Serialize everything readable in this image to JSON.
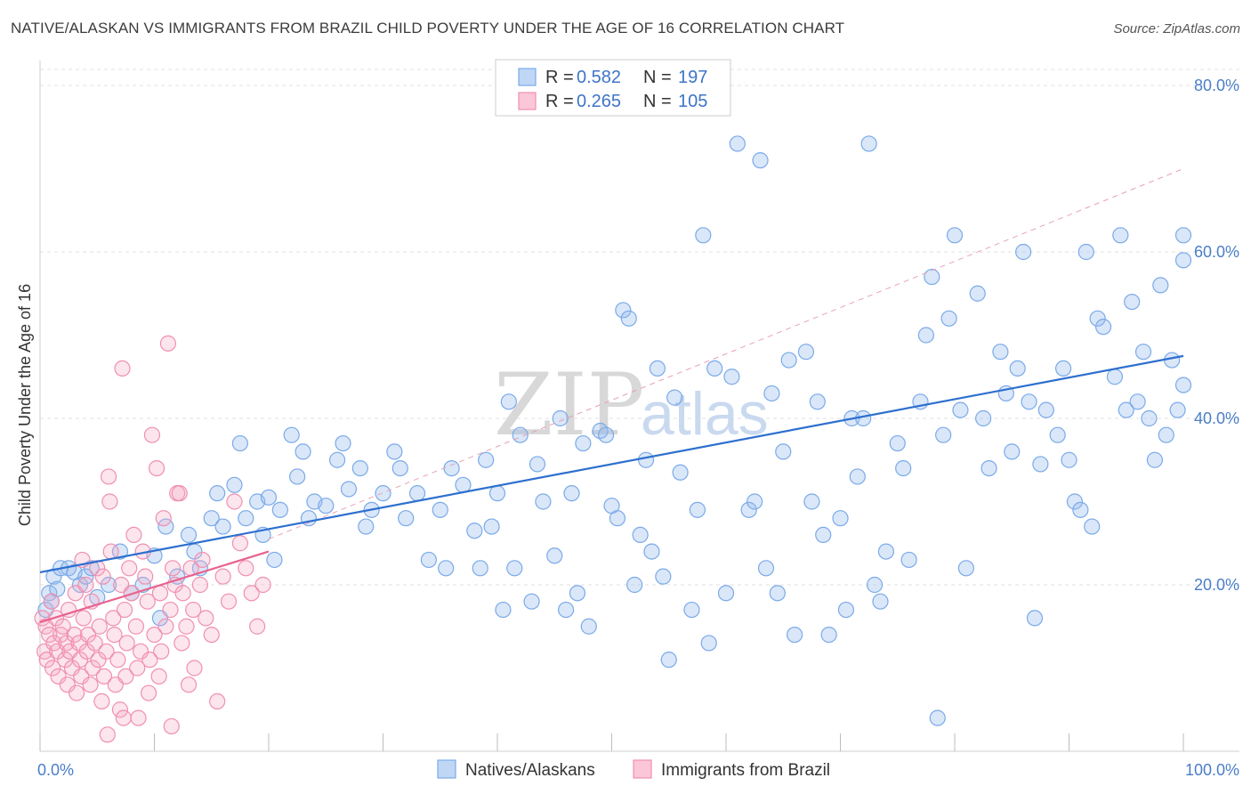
{
  "title": "NATIVE/ALASKAN VS IMMIGRANTS FROM BRAZIL CHILD POVERTY UNDER THE AGE OF 16 CORRELATION CHART",
  "source": "Source: ZipAtlas.com",
  "colors": {
    "blue": "#7aaae8",
    "blue_line": "#2d6fcf",
    "pink": "#f08fb0",
    "pink_line": "#e8628e",
    "axis_text": "#4a7ec8"
  },
  "legend": {
    "series": [
      {
        "r_label": "R =",
        "r_value": "0.582",
        "n_label": "N =",
        "n_value": "197"
      },
      {
        "r_label": "R =",
        "r_value": "0.265",
        "n_label": "N =",
        "n_value": "105"
      }
    ]
  },
  "watermark": {
    "zip": "ZIP",
    "atlas": "atlas"
  },
  "chart_data": {
    "type": "scatter",
    "title": "NATIVE/ALASKAN VS IMMIGRANTS FROM BRAZIL CHILD POVERTY UNDER THE AGE OF 16 CORRELATION CHART",
    "xlabel": "",
    "ylabel": "Child Poverty Under the Age of 16",
    "xlim": [
      0,
      100
    ],
    "ylim": [
      0,
      80
    ],
    "x_tick_labels": [
      "0.0%",
      "100.0%"
    ],
    "y_tick_labels": [
      "20.0%",
      "40.0%",
      "60.0%",
      "80.0%"
    ],
    "y_ticks": [
      20,
      40,
      60,
      80
    ],
    "series": [
      {
        "name": "Natives/Alaskans",
        "trend": {
          "x": [
            0,
            100
          ],
          "y": [
            21.5,
            47.5
          ]
        },
        "trend_ext": {
          "x": [
            20,
            100
          ],
          "y": [
            25.5,
            70
          ]
        },
        "points": [
          [
            0.5,
            17
          ],
          [
            0.8,
            19
          ],
          [
            1,
            18
          ],
          [
            1.2,
            21
          ],
          [
            1.5,
            19.5
          ],
          [
            1.8,
            22
          ],
          [
            2.5,
            22
          ],
          [
            3,
            21.5
          ],
          [
            3.5,
            20
          ],
          [
            4,
            21
          ],
          [
            4.5,
            22
          ],
          [
            5,
            18.5
          ],
          [
            6,
            20
          ],
          [
            7,
            24
          ],
          [
            8,
            19
          ],
          [
            9,
            20
          ],
          [
            10,
            23.5
          ],
          [
            10.5,
            16
          ],
          [
            11,
            27
          ],
          [
            12,
            21
          ],
          [
            13,
            26
          ],
          [
            13.5,
            24
          ],
          [
            14,
            22
          ],
          [
            15,
            28
          ],
          [
            15.5,
            31
          ],
          [
            16,
            27
          ],
          [
            17,
            32
          ],
          [
            17.5,
            37
          ],
          [
            18,
            28
          ],
          [
            19,
            30
          ],
          [
            19.5,
            26
          ],
          [
            20,
            30.5
          ],
          [
            20.5,
            23
          ],
          [
            21,
            29
          ],
          [
            22,
            38
          ],
          [
            22.5,
            33
          ],
          [
            23,
            36
          ],
          [
            23.5,
            28
          ],
          [
            24,
            30
          ],
          [
            25,
            29.5
          ],
          [
            26,
            35
          ],
          [
            26.5,
            37
          ],
          [
            27,
            31.5
          ],
          [
            28,
            34
          ],
          [
            28.5,
            27
          ],
          [
            29,
            29
          ],
          [
            30,
            31
          ],
          [
            31,
            36
          ],
          [
            31.5,
            34
          ],
          [
            32,
            28
          ],
          [
            33,
            31
          ],
          [
            34,
            23
          ],
          [
            35,
            29
          ],
          [
            35.5,
            22
          ],
          [
            36,
            34
          ],
          [
            37,
            32
          ],
          [
            38,
            26.5
          ],
          [
            38.5,
            22
          ],
          [
            39,
            35
          ],
          [
            39.5,
            27
          ],
          [
            40,
            31
          ],
          [
            40.5,
            17
          ],
          [
            41,
            42
          ],
          [
            41.5,
            22
          ],
          [
            42,
            38
          ],
          [
            43,
            18
          ],
          [
            43.5,
            34.5
          ],
          [
            44,
            30
          ],
          [
            45,
            23.5
          ],
          [
            45.5,
            40
          ],
          [
            46,
            17
          ],
          [
            46.5,
            31
          ],
          [
            47,
            19
          ],
          [
            47.5,
            37
          ],
          [
            48,
            15
          ],
          [
            49,
            38.5
          ],
          [
            49.5,
            38
          ],
          [
            50,
            29.5
          ],
          [
            50.5,
            28
          ],
          [
            51,
            53
          ],
          [
            51.5,
            52
          ],
          [
            52,
            20
          ],
          [
            52.5,
            26
          ],
          [
            53,
            35
          ],
          [
            53.5,
            24
          ],
          [
            54,
            46
          ],
          [
            54.5,
            21
          ],
          [
            55,
            11
          ],
          [
            55.5,
            42.5
          ],
          [
            56,
            33.5
          ],
          [
            57,
            17
          ],
          [
            57.5,
            29
          ],
          [
            58,
            62
          ],
          [
            58.5,
            13
          ],
          [
            59,
            46
          ],
          [
            60,
            19
          ],
          [
            60.5,
            45
          ],
          [
            61,
            73
          ],
          [
            62,
            29
          ],
          [
            62.5,
            30
          ],
          [
            63,
            71
          ],
          [
            63.5,
            22
          ],
          [
            64,
            43
          ],
          [
            64.5,
            19
          ],
          [
            65,
            36
          ],
          [
            65.5,
            47
          ],
          [
            66,
            14
          ],
          [
            67,
            48
          ],
          [
            67.5,
            30
          ],
          [
            68,
            42
          ],
          [
            68.5,
            26
          ],
          [
            69,
            14
          ],
          [
            70,
            28
          ],
          [
            70.5,
            17
          ],
          [
            71,
            40
          ],
          [
            71.5,
            33
          ],
          [
            72,
            40
          ],
          [
            72.5,
            73
          ],
          [
            73,
            20
          ],
          [
            73.5,
            18
          ],
          [
            74,
            24
          ],
          [
            75,
            37
          ],
          [
            75.5,
            34
          ],
          [
            76,
            23
          ],
          [
            77,
            42
          ],
          [
            77.5,
            50
          ],
          [
            78,
            57
          ],
          [
            78.5,
            4
          ],
          [
            79,
            38
          ],
          [
            79.5,
            52
          ],
          [
            80,
            62
          ],
          [
            80.5,
            41
          ],
          [
            81,
            22
          ],
          [
            82,
            55
          ],
          [
            82.5,
            40
          ],
          [
            83,
            34
          ],
          [
            84,
            48
          ],
          [
            84.5,
            43
          ],
          [
            85,
            36
          ],
          [
            85.5,
            46
          ],
          [
            86,
            60
          ],
          [
            86.5,
            42
          ],
          [
            87,
            16
          ],
          [
            87.5,
            34.5
          ],
          [
            88,
            41
          ],
          [
            89,
            38
          ],
          [
            89.5,
            46
          ],
          [
            90,
            35
          ],
          [
            90.5,
            30
          ],
          [
            91,
            29
          ],
          [
            91.5,
            60
          ],
          [
            92,
            27
          ],
          [
            92.5,
            52
          ],
          [
            93,
            51
          ],
          [
            94,
            45
          ],
          [
            94.5,
            62
          ],
          [
            95,
            41
          ],
          [
            95.5,
            54
          ],
          [
            96,
            42
          ],
          [
            96.5,
            48
          ],
          [
            97,
            40
          ],
          [
            97.5,
            35
          ],
          [
            98,
            56
          ],
          [
            98.5,
            38
          ],
          [
            99,
            47
          ],
          [
            99.5,
            41
          ],
          [
            100,
            62
          ],
          [
            100.5,
            59
          ],
          [
            101,
            44
          ]
        ]
      },
      {
        "name": "Immigrants from Brazil",
        "trend": {
          "x": [
            0,
            20
          ],
          "y": [
            15.5,
            24
          ]
        },
        "points": [
          [
            0.2,
            16
          ],
          [
            0.4,
            12
          ],
          [
            0.5,
            15
          ],
          [
            0.6,
            11
          ],
          [
            0.8,
            14
          ],
          [
            1,
            18
          ],
          [
            1.1,
            10
          ],
          [
            1.2,
            13
          ],
          [
            1.4,
            16
          ],
          [
            1.5,
            12
          ],
          [
            1.6,
            9
          ],
          [
            1.8,
            14
          ],
          [
            2,
            15
          ],
          [
            2.2,
            11
          ],
          [
            2.3,
            13
          ],
          [
            2.4,
            8
          ],
          [
            2.5,
            17
          ],
          [
            2.6,
            12
          ],
          [
            2.8,
            10
          ],
          [
            3,
            14
          ],
          [
            3.1,
            19
          ],
          [
            3.2,
            7
          ],
          [
            3.4,
            13
          ],
          [
            3.5,
            11
          ],
          [
            3.6,
            9
          ],
          [
            3.8,
            16
          ],
          [
            4,
            20
          ],
          [
            4.1,
            12
          ],
          [
            4.2,
            14
          ],
          [
            4.4,
            8
          ],
          [
            4.5,
            18
          ],
          [
            4.6,
            10
          ],
          [
            4.8,
            13
          ],
          [
            5,
            22
          ],
          [
            5.1,
            11
          ],
          [
            5.2,
            15
          ],
          [
            5.4,
            6
          ],
          [
            5.5,
            21
          ],
          [
            5.6,
            9
          ],
          [
            5.8,
            12
          ],
          [
            6,
            33
          ],
          [
            6.1,
            30
          ],
          [
            6.2,
            24
          ],
          [
            6.4,
            16
          ],
          [
            6.5,
            14
          ],
          [
            6.6,
            8
          ],
          [
            6.8,
            11
          ],
          [
            7,
            5
          ],
          [
            7.1,
            20
          ],
          [
            7.2,
            46
          ],
          [
            7.4,
            17
          ],
          [
            7.5,
            9
          ],
          [
            7.6,
            13
          ],
          [
            7.8,
            22
          ],
          [
            8,
            19
          ],
          [
            8.2,
            26
          ],
          [
            8.4,
            15
          ],
          [
            8.5,
            10
          ],
          [
            8.6,
            4
          ],
          [
            8.8,
            12
          ],
          [
            9,
            24
          ],
          [
            9.2,
            21
          ],
          [
            9.4,
            18
          ],
          [
            9.5,
            7
          ],
          [
            9.6,
            11
          ],
          [
            9.8,
            38
          ],
          [
            10,
            14
          ],
          [
            10.2,
            34
          ],
          [
            10.4,
            9
          ],
          [
            10.5,
            19
          ],
          [
            10.6,
            12
          ],
          [
            10.8,
            28
          ],
          [
            11,
            15
          ],
          [
            11.2,
            49
          ],
          [
            11.4,
            17
          ],
          [
            11.5,
            3
          ],
          [
            11.6,
            22
          ],
          [
            11.8,
            20
          ],
          [
            12,
            31
          ],
          [
            12.2,
            31
          ],
          [
            12.4,
            13
          ],
          [
            12.5,
            19
          ],
          [
            12.8,
            15
          ],
          [
            13,
            8
          ],
          [
            13.2,
            22
          ],
          [
            13.4,
            17
          ],
          [
            13.5,
            10
          ],
          [
            14,
            20
          ],
          [
            14.2,
            23
          ],
          [
            14.5,
            16
          ],
          [
            15,
            14
          ],
          [
            15.5,
            6
          ],
          [
            16,
            21
          ],
          [
            16.5,
            18
          ],
          [
            17,
            30
          ],
          [
            17.5,
            25
          ],
          [
            18,
            22
          ],
          [
            18.5,
            19
          ],
          [
            19,
            15
          ],
          [
            19.5,
            20
          ],
          [
            3.7,
            23
          ],
          [
            5.9,
            2
          ],
          [
            7.3,
            4
          ]
        ]
      }
    ],
    "legend_labels": [
      "Natives/Alaskans",
      "Immigrants from Brazil"
    ]
  }
}
